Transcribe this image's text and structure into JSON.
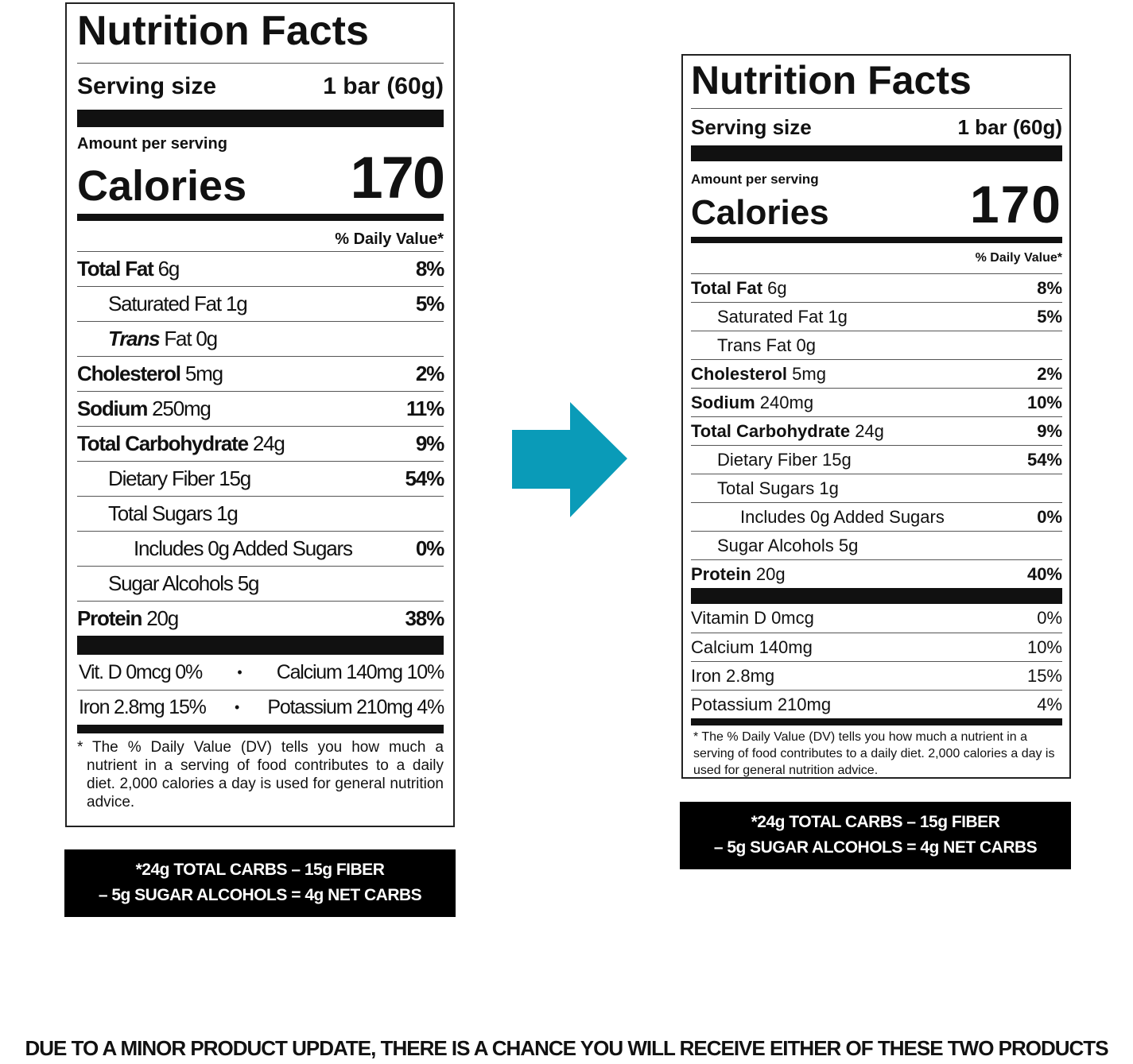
{
  "colors": {
    "arrow": "#0a9bb8",
    "text": "#111111",
    "net_box": "#000000"
  },
  "arrow_icon": "arrow-right-icon",
  "old_label": {
    "title": "Nutrition Facts",
    "serving_size_label": "Serving size",
    "serving_size_value": "1 bar (60g)",
    "amount_per_serving": "Amount per serving",
    "calories_label": "Calories",
    "calories_value": "170",
    "daily_value_header": "% Daily Value*",
    "rows": [
      {
        "name": "Total Fat",
        "amount": "6g",
        "dv": "8%",
        "indent": 0
      },
      {
        "name": "Saturated Fat",
        "amount": "1g",
        "dv": "5%",
        "indent": 1,
        "plain": true
      },
      {
        "name": "Trans",
        "amount": "Fat 0g",
        "dv": "",
        "indent": 1,
        "italic": true
      },
      {
        "name": "Cholesterol",
        "amount": "5mg",
        "dv": "2%",
        "indent": 0
      },
      {
        "name": "Sodium",
        "amount": "250mg",
        "dv": "11%",
        "indent": 0
      },
      {
        "name": "Total Carbohydrate",
        "amount": "24g",
        "dv": "9%",
        "indent": 0
      },
      {
        "name": "Dietary Fiber",
        "amount": "15g",
        "dv": "54%",
        "indent": 1,
        "plain": true
      },
      {
        "name": "Total Sugars",
        "amount": "1g",
        "dv": "",
        "indent": 1,
        "plain": true
      },
      {
        "name": "Includes 0g Added Sugars",
        "amount": "",
        "dv": "0%",
        "indent": 2,
        "plain": true
      },
      {
        "name": "Sugar Alcohols",
        "amount": "5g",
        "dv": "",
        "indent": 1,
        "plain": true
      },
      {
        "name": "Protein",
        "amount": "20g",
        "dv": "38%",
        "indent": 0
      }
    ],
    "vitamin_rows": [
      {
        "left": "Vit. D 0mcg 0%",
        "right": "Calcium 140mg 10%"
      },
      {
        "left": "Iron 2.8mg 15%",
        "right": "Potassium 210mg 4%"
      }
    ],
    "bullet": "•",
    "footnote": "* The % Daily Value (DV) tells you how much a nutrient in a serving of food contributes to a daily diet. 2,000 calories a day is used for general nutrition advice.",
    "net_carbs": [
      "*24g TOTAL CARBS – 15g FIBER",
      "– 5g SUGAR ALCOHOLS = 4g NET CARBS"
    ]
  },
  "new_label": {
    "title": "Nutrition Facts",
    "serving_size_label": "Serving size",
    "serving_size_value": "1 bar (60g)",
    "amount_per_serving": "Amount per serving",
    "calories_label": "Calories",
    "calories_value": "170",
    "daily_value_header": "% Daily Value*",
    "rows": [
      {
        "name": "Total Fat",
        "amount": "6g",
        "dv": "8%",
        "indent": 0
      },
      {
        "name": "Saturated Fat",
        "amount": "1g",
        "dv": "5%",
        "indent": 1,
        "plain": true
      },
      {
        "name": "Trans Fat",
        "amount": "0g",
        "dv": "",
        "indent": 1,
        "plain": true
      },
      {
        "name": "Cholesterol",
        "amount": "5mg",
        "dv": "2%",
        "indent": 0
      },
      {
        "name": "Sodium",
        "amount": "240mg",
        "dv": "10%",
        "indent": 0
      },
      {
        "name": "Total Carbohydrate",
        "amount": "24g",
        "dv": "9%",
        "indent": 0
      },
      {
        "name": "Dietary Fiber",
        "amount": "15g",
        "dv": "54%",
        "indent": 1,
        "plain": true
      },
      {
        "name": "Total Sugars",
        "amount": "1g",
        "dv": "",
        "indent": 1,
        "plain": true
      },
      {
        "name": "Includes 0g Added Sugars",
        "amount": "",
        "dv": "0%",
        "indent": 2,
        "plain": true
      },
      {
        "name": "Sugar Alcohols",
        "amount": "5g",
        "dv": "",
        "indent": 1,
        "plain": true
      },
      {
        "name": "Protein",
        "amount": "20g",
        "dv": "40%",
        "indent": 0
      }
    ],
    "vitamin_rows": [
      {
        "name": "Vitamin D 0mcg",
        "dv": "0%"
      },
      {
        "name": "Calcium 140mg",
        "dv": "10%"
      },
      {
        "name": "Iron 2.8mg",
        "dv": "15%"
      },
      {
        "name": "Potassium 210mg",
        "dv": "4%"
      }
    ],
    "footnote": "* The % Daily Value (DV) tells you how much a nutrient in a serving of food contributes to a daily diet. 2,000 calories a day is used for general nutrition advice.",
    "net_carbs": [
      "*24g TOTAL CARBS – 15g FIBER",
      "– 5g SUGAR ALCOHOLS = 4g NET CARBS"
    ]
  },
  "notice": "DUE TO A MINOR PRODUCT UPDATE, THERE IS A CHANCE YOU WILL RECEIVE EITHER OF THESE TWO PRODUCTS"
}
